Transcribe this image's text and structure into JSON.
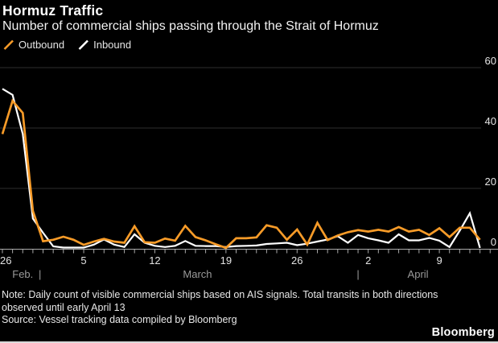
{
  "header": {
    "title": "Hormuz Traffic",
    "subtitle": "Number of commercial ships passing through the Strait of Hormuz"
  },
  "legend": {
    "items": [
      {
        "label": "Outbound",
        "color": "#F79B28",
        "icon": "slash-icon"
      },
      {
        "label": "Inbound",
        "color": "#FFFFFF",
        "icon": "slash-icon"
      }
    ]
  },
  "chart_data": {
    "type": "line",
    "title": "Hormuz Traffic",
    "subtitle": "Number of commercial ships passing through the Strait of Hormuz",
    "x": [
      "Feb 26",
      "Feb 27",
      "Feb 28",
      "Feb 29",
      "Mar 1",
      "Mar 2",
      "Mar 3",
      "Mar 4",
      "Mar 5",
      "Mar 6",
      "Mar 7",
      "Mar 8",
      "Mar 9",
      "Mar 10",
      "Mar 11",
      "Mar 12",
      "Mar 13",
      "Mar 14",
      "Mar 15",
      "Mar 16",
      "Mar 17",
      "Mar 18",
      "Mar 19",
      "Mar 20",
      "Mar 21",
      "Mar 22",
      "Mar 23",
      "Mar 24",
      "Mar 25",
      "Mar 26",
      "Mar 27",
      "Mar 28",
      "Mar 29",
      "Mar 30",
      "Mar 31",
      "Apr 1",
      "Apr 2",
      "Apr 3",
      "Apr 4",
      "Apr 5",
      "Apr 6",
      "Apr 7",
      "Apr 8",
      "Apr 9",
      "Apr 10",
      "Apr 11",
      "Apr 12",
      "Apr 13"
    ],
    "series": [
      {
        "name": "Outbound",
        "color": "#F79B28",
        "values": [
          38,
          49,
          45,
          12.5,
          2.5,
          3,
          4,
          3,
          1.3,
          2.4,
          3.3,
          2.4,
          2,
          7.5,
          2.2,
          2,
          3.4,
          2.7,
          7.6,
          3.9,
          2.8,
          1.5,
          0.3,
          3.5,
          3.5,
          3.8,
          7.8,
          7,
          3,
          6.4,
          1.4,
          8.6,
          2.9,
          4.4,
          5.5,
          6.2,
          5.7,
          6.3,
          5.7,
          7.2,
          5.7,
          6.3,
          4.6,
          6.8,
          3.9,
          7,
          7,
          3
        ]
      },
      {
        "name": "Inbound",
        "color": "#FFFFFF",
        "values": [
          53,
          51,
          38,
          10,
          5.3,
          0.8,
          0.4,
          0.4,
          0.4,
          1.4,
          3.1,
          1.4,
          0.6,
          4.8,
          2,
          1,
          0.6,
          1,
          2.6,
          1,
          0.9,
          0.9,
          0.6,
          0.9,
          1,
          1.1,
          1.6,
          1.8,
          2,
          1.2,
          1.7,
          2.4,
          3.1,
          4.2,
          2,
          4.6,
          3.5,
          2.8,
          2,
          4.8,
          2.8,
          2.8,
          3.6,
          2.7,
          0.6,
          6,
          11.8,
          0.3
        ]
      }
    ],
    "ylim": [
      0,
      60
    ],
    "yticks": [
      0,
      20,
      40,
      60
    ],
    "ytick_side": "right",
    "grid": "horizontal",
    "legend_position": "top-left",
    "xtick_labels": [
      {
        "label": "26",
        "day": 0
      },
      {
        "label": "5",
        "day": 8
      },
      {
        "label": "12",
        "day": 15
      },
      {
        "label": "19",
        "day": 22
      },
      {
        "label": "26",
        "day": 29
      },
      {
        "label": "2",
        "day": 36
      },
      {
        "label": "9",
        "day": 43
      }
    ],
    "month_labels": [
      {
        "label": "Feb.",
        "day": 2
      },
      {
        "label": "|",
        "day": 3.7
      },
      {
        "label": "March",
        "day": 19.2
      },
      {
        "label": "|",
        "day": 35
      },
      {
        "label": "April",
        "day": 40.9
      }
    ]
  },
  "footer": {
    "note": "Note: Daily count of visible commercial ships based on AIS signals. Total transits in both directions observed until early April 13",
    "source": "Source: Vessel tracking data compiled by Bloomberg",
    "brand": "Bloomberg"
  }
}
